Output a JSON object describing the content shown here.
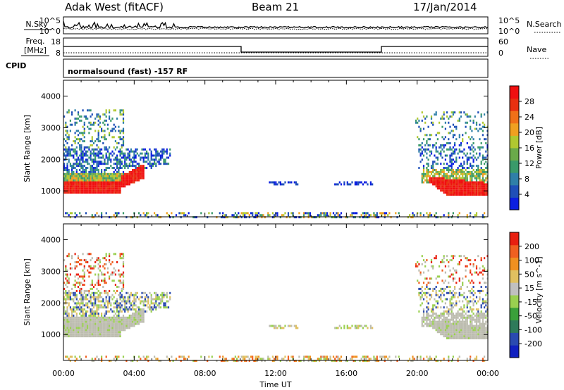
{
  "header": {
    "station": "Adak West (fitACF)",
    "beam": "Beam 21",
    "date": "17/Jan/2014"
  },
  "sky_panel": {
    "label": "N.Sky",
    "right_label": "N.Search",
    "left_ticks": [
      "10^5",
      "10^0"
    ],
    "right_ticks": [
      "10^5",
      "10^0"
    ]
  },
  "freq_panel": {
    "label_line1": "Freq.",
    "label_line2": "[MHz]",
    "right_label": "Nave",
    "left_ticks": [
      "18",
      "8"
    ],
    "right_ticks": [
      "60",
      "0"
    ]
  },
  "cpid_panel": {
    "label": "CPID",
    "text": "normalsound (fast) -157 RF"
  },
  "chart_data": [
    {
      "type": "heatmap",
      "name": "power",
      "ylabel": "Slant Range [km]",
      "xlabel": "",
      "ylim": [
        180,
        4500
      ],
      "y_ticks": [
        1000,
        2000,
        3000,
        4000
      ],
      "colorbar": {
        "label": "Power [dB]",
        "ticks": [
          "4",
          "8",
          "12",
          "16",
          "20",
          "24",
          "28"
        ],
        "colors": [
          "#0b1fe0",
          "#1f4fb8",
          "#2f7fa8",
          "#3a9a6a",
          "#6aaa4a",
          "#b0c830",
          "#f0a020",
          "#f07018",
          "#e83010",
          "#f01010"
        ]
      }
    },
    {
      "type": "heatmap",
      "name": "velocity",
      "ylabel": "Slant Range [km]",
      "xlabel": "Time UT",
      "ylim": [
        180,
        4500
      ],
      "y_ticks": [
        1000,
        2000,
        3000,
        4000
      ],
      "x_ticks": [
        "00:00",
        "04:00",
        "08:00",
        "12:00",
        "16:00",
        "20:00",
        "00:00"
      ],
      "colorbar": {
        "label": "Velocity [m s^-1]",
        "ticks": [
          "200",
          "100",
          "50",
          "15",
          "-15",
          "-50",
          "-100",
          "-200"
        ],
        "colors": [
          "#1020c0",
          "#2a4ab0",
          "#2e7a5a",
          "#3aa03a",
          "#9ad050",
          "#c0c0c0",
          "#e0c060",
          "#f09020",
          "#f06020",
          "#e82010"
        ]
      }
    }
  ],
  "colors": {
    "axis": "#000000",
    "ground_scatter": "#bdbdb0"
  }
}
